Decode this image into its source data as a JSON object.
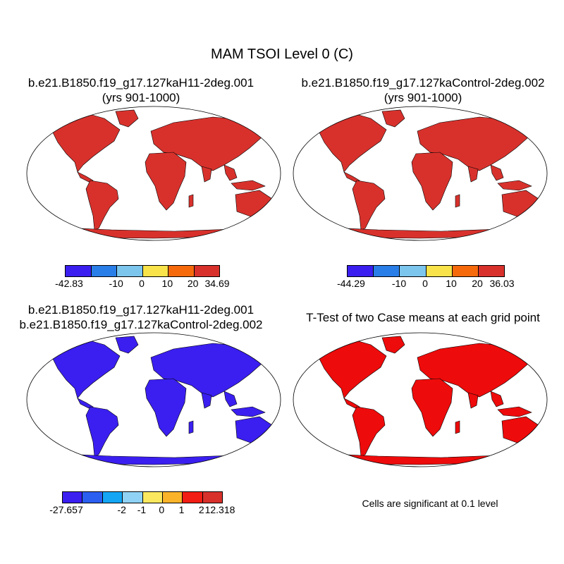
{
  "main_title": "MAM TSOI Level 0 (C)",
  "panels": [
    {
      "id": "case",
      "title_line1": "b.e21.B1850.f19_g17.127kaH11-2deg.001",
      "title_line2": "(yrs 901-1000)",
      "colorbar": {
        "colors": [
          "#3a1ff0",
          "#2a7ee8",
          "#7cc6ee",
          "#f8e34a",
          "#f76a0c",
          "#d8312c"
        ],
        "labels": [
          "-42.83",
          "-10",
          "0",
          "10",
          "20",
          "34.69"
        ]
      }
    },
    {
      "id": "control",
      "title_line1": "b.e21.B1850.f19_g17.127kaControl-2deg.002",
      "title_line2": "(yrs 901-1000)",
      "colorbar": {
        "colors": [
          "#3a1ff0",
          "#2a7ee8",
          "#7cc6ee",
          "#f8e34a",
          "#f76a0c",
          "#d8312c"
        ],
        "labels": [
          "-44.29",
          "-10",
          "0",
          "10",
          "20",
          "36.03"
        ]
      }
    },
    {
      "id": "difference",
      "title_line1": "b.e21.B1850.f19_g17.127kaH11-2deg.001",
      "title_line2": "b.e21.B1850.f19_g17.127kaControl-2deg.002",
      "colorbar": {
        "colors": [
          "#3a1ff0",
          "#2b5ff0",
          "#14a6f5",
          "#8fd2f5",
          "#fbe85e",
          "#fbb32a",
          "#f21d14",
          "#d8312c"
        ],
        "labels": [
          "-27.657",
          "-2",
          "-1",
          "0",
          "1",
          "2",
          "12.318"
        ]
      }
    },
    {
      "id": "ttest",
      "title_line1": "T-Test of two Case means at each grid point",
      "note": "Cells are significant at 0.1 level",
      "significant_color": "#ee0b0b"
    }
  ]
}
